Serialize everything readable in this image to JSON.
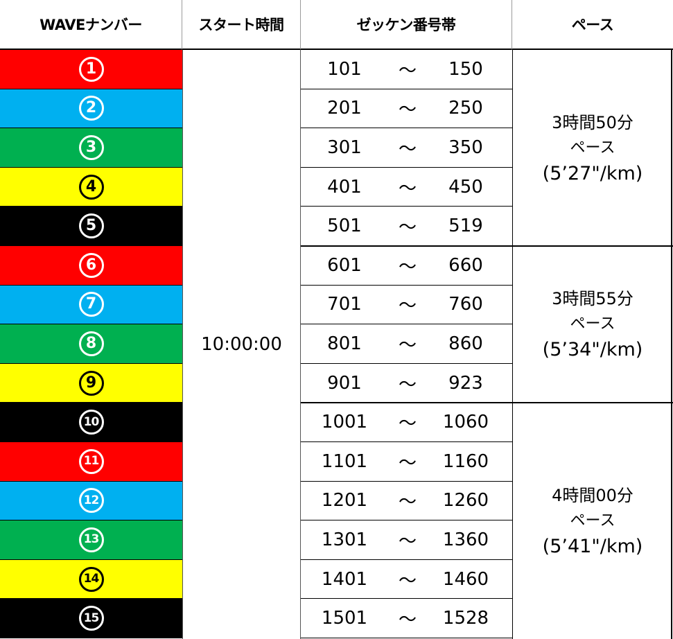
{
  "header": {
    "wave_number": "WAVEナンバー",
    "start_time": "スタート時間",
    "bib_range": "ゼッケン番号帯",
    "pace": "ペース"
  },
  "colors": {
    "red": "#ff0000",
    "blue": "#00b0f0",
    "green": "#00b050",
    "yellow": "#ffff00",
    "black": "#000000"
  },
  "waves": [
    {
      "number": "1",
      "color": "#ff0000",
      "fg": "#ffffff"
    },
    {
      "number": "2",
      "color": "#00b0f0",
      "fg": "#ffffff"
    },
    {
      "number": "3",
      "color": "#00b050",
      "fg": "#ffffff"
    },
    {
      "number": "4",
      "color": "#ffff00",
      "fg": "#000000"
    },
    {
      "number": "5",
      "color": "#000000",
      "fg": "#ffffff"
    },
    {
      "number": "6",
      "color": "#ff0000",
      "fg": "#ffffff"
    },
    {
      "number": "7",
      "color": "#00b0f0",
      "fg": "#ffffff"
    },
    {
      "number": "8",
      "color": "#00b050",
      "fg": "#ffffff"
    },
    {
      "number": "9",
      "color": "#ffff00",
      "fg": "#000000"
    },
    {
      "number": "10",
      "color": "#000000",
      "fg": "#ffffff"
    },
    {
      "number": "11",
      "color": "#ff0000",
      "fg": "#ffffff"
    },
    {
      "number": "12",
      "color": "#00b0f0",
      "fg": "#ffffff"
    },
    {
      "number": "13",
      "color": "#00b050",
      "fg": "#ffffff"
    },
    {
      "number": "14",
      "color": "#ffff00",
      "fg": "#000000"
    },
    {
      "number": "15",
      "color": "#000000",
      "fg": "#ffffff"
    }
  ],
  "start_time": "10:00:00",
  "bib_ranges": [
    {
      "from": "101",
      "sep": "～",
      "to": "150"
    },
    {
      "from": "201",
      "sep": "～",
      "to": "250"
    },
    {
      "from": "301",
      "sep": "～",
      "to": "350"
    },
    {
      "from": "401",
      "sep": "～",
      "to": "450"
    },
    {
      "from": "501",
      "sep": "～",
      "to": "519"
    },
    {
      "from": "601",
      "sep": "～",
      "to": "660"
    },
    {
      "from": "701",
      "sep": "～",
      "to": "760"
    },
    {
      "from": "801",
      "sep": "～",
      "to": "860"
    },
    {
      "from": "901",
      "sep": "～",
      "to": "923"
    },
    {
      "from": "1001",
      "sep": "～",
      "to": "1060"
    },
    {
      "from": "1101",
      "sep": "～",
      "to": "1160"
    },
    {
      "from": "1201",
      "sep": "～",
      "to": "1260"
    },
    {
      "from": "1301",
      "sep": "～",
      "to": "1360"
    },
    {
      "from": "1401",
      "sep": "～",
      "to": "1460"
    },
    {
      "from": "1501",
      "sep": "～",
      "to": "1528"
    }
  ],
  "paces": [
    {
      "time": "3時間50分",
      "label": "ペース",
      "per_km": "(5’27\"/km)"
    },
    {
      "time": "3時間55分",
      "label": "ペース",
      "per_km": "(5’34\"/km)"
    },
    {
      "time": "4時間00分",
      "label": "ペース",
      "per_km": "(5’41\"/km)"
    }
  ]
}
